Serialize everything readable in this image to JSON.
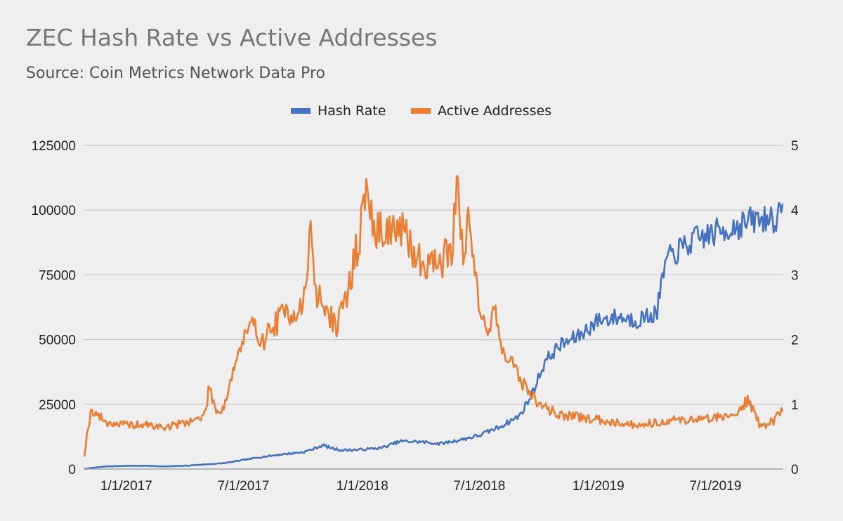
{
  "chart_data": {
    "type": "line",
    "title": "ZEC Hash Rate vs Active Addresses",
    "subtitle": "Source: Coin Metrics Network Data Pro",
    "xlabel": "",
    "ylabel": "",
    "y2label": "",
    "x_axis_type": "date",
    "xlim": [
      "2016-10-28",
      "2019-10-14"
    ],
    "ylim": [
      0,
      125000
    ],
    "y2lim": [
      0,
      5
    ],
    "y_ticks": [
      0,
      25000,
      50000,
      75000,
      100000,
      125000
    ],
    "y2_ticks": [
      0,
      1,
      2,
      3,
      4,
      5
    ],
    "x_tick_dates": [
      "2017-01-01",
      "2017-07-01",
      "2018-01-01",
      "2018-07-01",
      "2019-01-01",
      "2019-07-01"
    ],
    "x_tick_labels": [
      "1/1/2017",
      "7/1/2017",
      "1/1/2018",
      "7/1/2018",
      "1/1/2019",
      "7/1/2019"
    ],
    "grid": "horizontal",
    "legend": {
      "position": "top-center"
    },
    "series": [
      {
        "name": "Hash Rate",
        "axis": "right",
        "color": "#4472c4",
        "points": [
          [
            "2016-10-28",
            0.0
          ],
          [
            "2016-11-10",
            0.02
          ],
          [
            "2016-12-01",
            0.04
          ],
          [
            "2017-01-01",
            0.05
          ],
          [
            "2017-02-01",
            0.05
          ],
          [
            "2017-03-01",
            0.04
          ],
          [
            "2017-04-01",
            0.05
          ],
          [
            "2017-05-01",
            0.07
          ],
          [
            "2017-06-01",
            0.09
          ],
          [
            "2017-07-01",
            0.14
          ],
          [
            "2017-08-01",
            0.19
          ],
          [
            "2017-09-01",
            0.23
          ],
          [
            "2017-10-01",
            0.26
          ],
          [
            "2017-10-20",
            0.32
          ],
          [
            "2017-11-01",
            0.37
          ],
          [
            "2017-11-15",
            0.32
          ],
          [
            "2017-12-01",
            0.29
          ],
          [
            "2018-01-01",
            0.3
          ],
          [
            "2018-02-01",
            0.33
          ],
          [
            "2018-03-01",
            0.43
          ],
          [
            "2018-04-01",
            0.42
          ],
          [
            "2018-05-01",
            0.39
          ],
          [
            "2018-06-01",
            0.45
          ],
          [
            "2018-07-01",
            0.52
          ],
          [
            "2018-08-01",
            0.65
          ],
          [
            "2018-09-01",
            0.82
          ],
          [
            "2018-09-20",
            1.15
          ],
          [
            "2018-10-10",
            1.65
          ],
          [
            "2018-11-01",
            1.9
          ],
          [
            "2018-12-01",
            2.05
          ],
          [
            "2019-01-01",
            2.3
          ],
          [
            "2019-02-01",
            2.35
          ],
          [
            "2019-03-01",
            2.3
          ],
          [
            "2019-04-01",
            2.4
          ],
          [
            "2019-04-15",
            3.2
          ],
          [
            "2019-05-01",
            3.35
          ],
          [
            "2019-06-01",
            3.55
          ],
          [
            "2019-07-01",
            3.65
          ],
          [
            "2019-08-01",
            3.75
          ],
          [
            "2019-09-01",
            3.85
          ],
          [
            "2019-10-14",
            3.9
          ]
        ]
      },
      {
        "name": "Active Addresses",
        "axis": "left",
        "color": "#ed7d31",
        "points": [
          [
            "2016-10-28",
            5000
          ],
          [
            "2016-11-01",
            13000
          ],
          [
            "2016-11-08",
            23000
          ],
          [
            "2016-12-01",
            18000
          ],
          [
            "2017-01-01",
            17000
          ],
          [
            "2017-02-01",
            17000
          ],
          [
            "2017-03-01",
            16000
          ],
          [
            "2017-04-01",
            18000
          ],
          [
            "2017-05-01",
            20000
          ],
          [
            "2017-05-10",
            32000
          ],
          [
            "2017-05-20",
            22000
          ],
          [
            "2017-06-01",
            24000
          ],
          [
            "2017-06-15",
            38000
          ],
          [
            "2017-07-01",
            50000
          ],
          [
            "2017-07-15",
            55000
          ],
          [
            "2017-08-01",
            50000
          ],
          [
            "2017-09-01",
            60000
          ],
          [
            "2017-10-01",
            62000
          ],
          [
            "2017-10-15",
            94000
          ],
          [
            "2017-10-20",
            68000
          ],
          [
            "2017-11-01",
            64000
          ],
          [
            "2017-11-20",
            55000
          ],
          [
            "2017-12-01",
            60000
          ],
          [
            "2017-12-15",
            75000
          ],
          [
            "2018-01-01",
            96000
          ],
          [
            "2018-01-08",
            110000
          ],
          [
            "2018-01-20",
            90000
          ],
          [
            "2018-02-01",
            93000
          ],
          [
            "2018-03-01",
            92000
          ],
          [
            "2018-04-01",
            80000
          ],
          [
            "2018-05-01",
            80000
          ],
          [
            "2018-05-20",
            85000
          ],
          [
            "2018-05-28",
            120000
          ],
          [
            "2018-06-05",
            80000
          ],
          [
            "2018-06-15",
            95000
          ],
          [
            "2018-07-01",
            65000
          ],
          [
            "2018-07-15",
            52000
          ],
          [
            "2018-07-25",
            62000
          ],
          [
            "2018-08-01",
            50000
          ],
          [
            "2018-09-01",
            35000
          ],
          [
            "2018-10-01",
            25000
          ],
          [
            "2018-11-01",
            21000
          ],
          [
            "2018-12-01",
            20000
          ],
          [
            "2019-01-01",
            19000
          ],
          [
            "2019-02-01",
            18000
          ],
          [
            "2019-03-01",
            17000
          ],
          [
            "2019-04-01",
            18000
          ],
          [
            "2019-05-01",
            19000
          ],
          [
            "2019-06-01",
            19000
          ],
          [
            "2019-07-01",
            20000
          ],
          [
            "2019-08-01",
            21000
          ],
          [
            "2019-08-20",
            27000
          ],
          [
            "2019-09-10",
            16000
          ],
          [
            "2019-10-01",
            19000
          ],
          [
            "2019-10-14",
            24000
          ]
        ]
      }
    ]
  }
}
